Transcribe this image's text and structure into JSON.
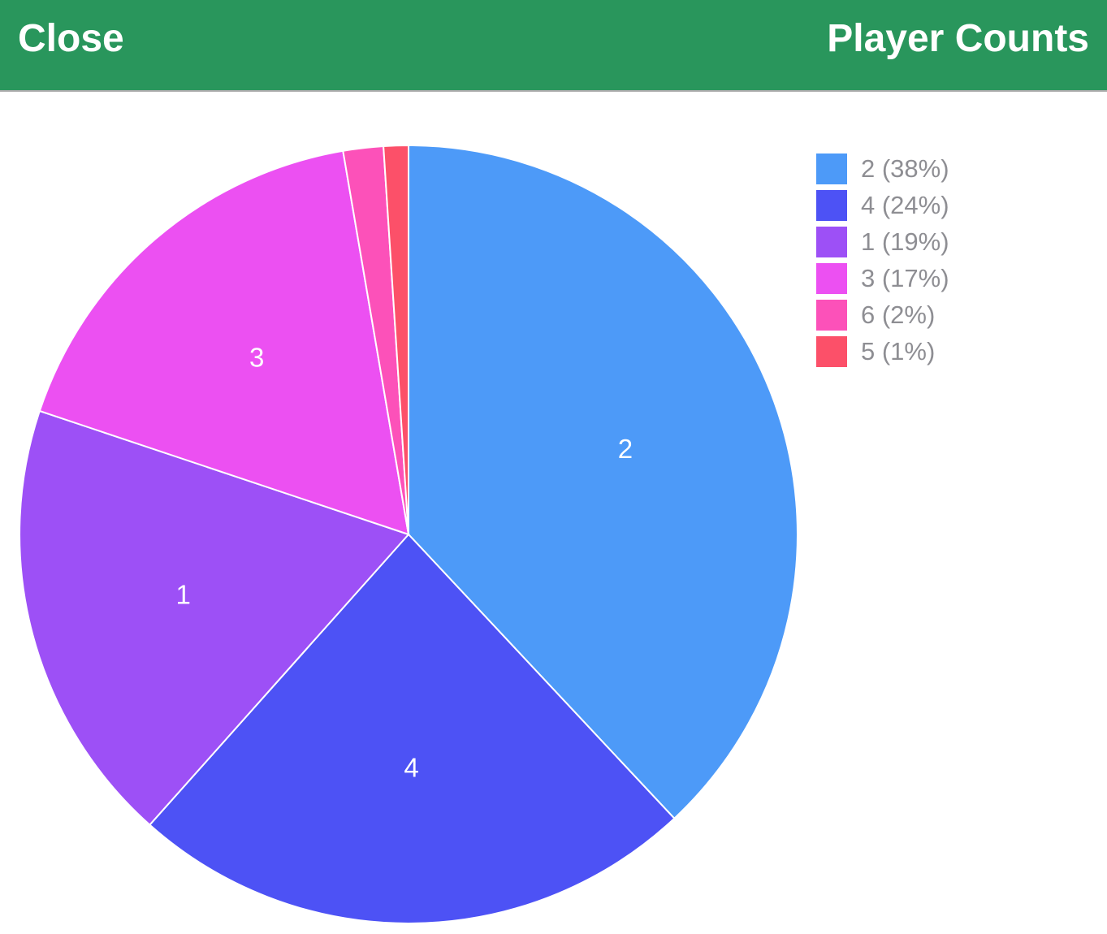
{
  "header": {
    "close_label": "Close",
    "title": "Player Counts",
    "bg_color": "#29965C",
    "text_color": "#FFFFFF"
  },
  "chart_data": {
    "type": "pie",
    "title": "Player Counts",
    "direction": "clockwise",
    "start_angle": "12-o-clock",
    "legend_position": "top-right",
    "slice_label_color": "#FFFFFF",
    "legend_text_color": "#8E8E93",
    "slices": [
      {
        "label": "2",
        "pct": 38,
        "angle_deg": 136.9,
        "color": "#4D9AF8",
        "legend_label": "2 (38%)"
      },
      {
        "label": "4",
        "pct": 24,
        "angle_deg": 84.8,
        "color": "#4D52F5",
        "legend_label": "4 (24%)"
      },
      {
        "label": "1",
        "pct": 19,
        "angle_deg": 66.8,
        "color": "#9D50F6",
        "legend_label": "1 (19%)"
      },
      {
        "label": "3",
        "pct": 17,
        "angle_deg": 61.8,
        "color": "#EC50F2",
        "legend_label": "3 (17%)"
      },
      {
        "label": "6",
        "pct": 2,
        "angle_deg": 6.0,
        "color": "#FC51B9",
        "legend_label": "6 (2%)"
      },
      {
        "label": "5",
        "pct": 1,
        "angle_deg": 3.7,
        "color": "#FC5069",
        "legend_label": "5 (1%)"
      }
    ]
  }
}
